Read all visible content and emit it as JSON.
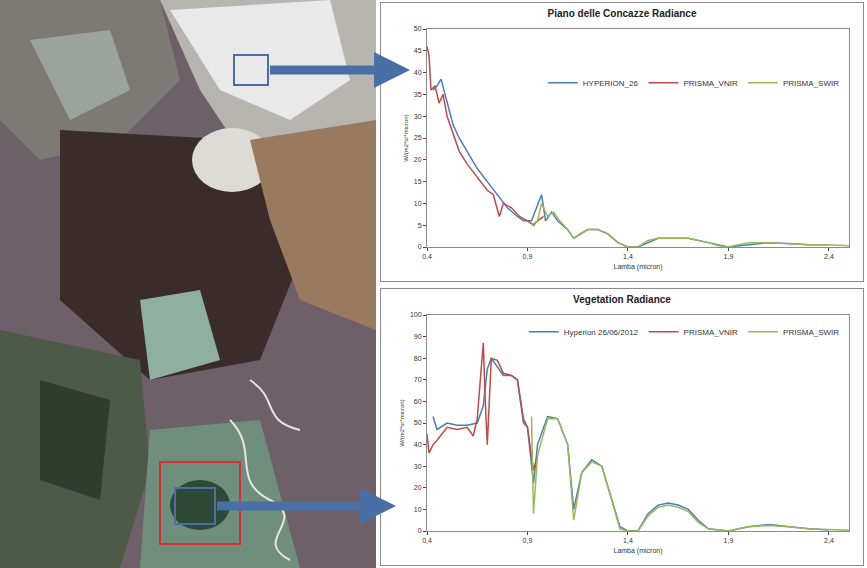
{
  "chart_data": [
    {
      "type": "line",
      "title": "Piano delle Concazze Radiance",
      "xlabel": "Lamba (micron)",
      "ylabel": "W/(m2*sr*micron)",
      "xlim": [
        0.4,
        2.5
      ],
      "xticks": [
        {
          "value": 0.4,
          "label": "0,4"
        },
        {
          "value": 0.9,
          "label": "0,9"
        },
        {
          "value": 1.4,
          "label": "1,4"
        },
        {
          "value": 1.9,
          "label": "1,9"
        },
        {
          "value": 2.4,
          "label": "2,4"
        }
      ],
      "ylim": [
        0,
        50
      ],
      "yticks": [
        0,
        5,
        10,
        15,
        20,
        25,
        30,
        35,
        40,
        45,
        50
      ],
      "grid": false,
      "legend": "upper right",
      "series": [
        {
          "name": "HYPERION_26",
          "color": "#4a7ebb",
          "x": [
            0.43,
            0.45,
            0.47,
            0.5,
            0.53,
            0.56,
            0.6,
            0.65,
            0.7,
            0.75,
            0.8,
            0.85,
            0.88,
            0.92,
            0.97,
            0.99,
            1.02,
            1.05,
            1.1,
            1.13,
            1.2,
            1.25,
            1.3,
            1.35,
            1.4,
            1.45,
            1.5,
            1.55,
            1.6,
            1.7,
            1.8,
            1.85,
            1.9,
            2.0,
            2.1,
            2.2,
            2.3,
            2.4
          ],
          "values": [
            36,
            37,
            38.5,
            33,
            28,
            25,
            22,
            18,
            15,
            12,
            9,
            7,
            6,
            6,
            12,
            6,
            8,
            6,
            4,
            2,
            4,
            4,
            3,
            1,
            0,
            0,
            1,
            2,
            2,
            2,
            1,
            0.5,
            0,
            0.5,
            1,
            0.8,
            0.5,
            0.5
          ]
        },
        {
          "name": "PRISMA_VNIR",
          "color": "#be4b48",
          "x": [
            0.4,
            0.41,
            0.42,
            0.44,
            0.46,
            0.48,
            0.5,
            0.53,
            0.56,
            0.6,
            0.65,
            0.68,
            0.7,
            0.73,
            0.76,
            0.78,
            0.82,
            0.86,
            0.9,
            0.93,
            0.95,
            0.98
          ],
          "values": [
            46,
            44,
            36,
            37,
            33,
            35,
            30,
            26,
            22,
            19,
            16,
            14,
            13,
            12,
            7,
            10,
            9,
            7,
            6,
            5,
            6,
            7
          ]
        },
        {
          "name": "PRISMA_SWIR",
          "color": "#98b954",
          "x": [
            0.92,
            0.95,
            0.97,
            1.0,
            1.03,
            1.06,
            1.1,
            1.13,
            1.16,
            1.2,
            1.25,
            1.3,
            1.35,
            1.4,
            1.45,
            1.5,
            1.55,
            1.6,
            1.7,
            1.75,
            1.8,
            1.85,
            1.9,
            1.95,
            2.0,
            2.1,
            2.2,
            2.3,
            2.4,
            2.5
          ],
          "values": [
            5,
            6,
            10,
            7,
            8,
            6,
            4,
            2,
            3,
            4,
            4,
            3,
            1,
            0,
            0,
            1.5,
            2,
            2,
            2,
            1.5,
            1,
            0.3,
            0,
            0.5,
            1,
            1,
            0.8,
            0.5,
            0.5,
            0.3
          ]
        }
      ]
    },
    {
      "type": "line",
      "title": "Vegetation Radiance",
      "xlabel": "Lamba (micron)",
      "ylabel": "W/(m2*sr*micron)",
      "xlim": [
        0.4,
        2.5
      ],
      "xticks": [
        {
          "value": 0.4,
          "label": "0,4"
        },
        {
          "value": 0.9,
          "label": "0,9"
        },
        {
          "value": 1.4,
          "label": "1,4"
        },
        {
          "value": 1.9,
          "label": "1,9"
        },
        {
          "value": 2.4,
          "label": "2,4"
        }
      ],
      "ylim": [
        0,
        100
      ],
      "yticks": [
        0,
        10,
        20,
        30,
        40,
        50,
        60,
        70,
        80,
        90,
        100
      ],
      "grid": false,
      "legend": "upper right",
      "series": [
        {
          "name": "Hyperion 26/06/2012",
          "color": "#4a7ebb",
          "x": [
            0.43,
            0.45,
            0.5,
            0.55,
            0.6,
            0.65,
            0.68,
            0.7,
            0.72,
            0.75,
            0.78,
            0.82,
            0.85,
            0.88,
            0.9,
            0.93,
            0.95,
            1.0,
            1.05,
            1.1,
            1.13,
            1.17,
            1.22,
            1.27,
            1.32,
            1.36,
            1.4,
            1.45,
            1.5,
            1.55,
            1.6,
            1.65,
            1.7,
            1.75,
            1.8,
            1.9,
            1.95,
            2.0,
            2.1,
            2.2,
            2.3,
            2.4
          ],
          "values": [
            53,
            47,
            50,
            49,
            49,
            50,
            58,
            75,
            80,
            76,
            72,
            72,
            70,
            52,
            48,
            22,
            40,
            53,
            52,
            40,
            10,
            27,
            33,
            30,
            15,
            2,
            0,
            0,
            8,
            12,
            13,
            12,
            10,
            5,
            1,
            0,
            1,
            2,
            3,
            2,
            1,
            0.5
          ]
        },
        {
          "name": "PRISMA_VNIR",
          "color": "#be4b48",
          "x": [
            0.4,
            0.41,
            0.43,
            0.45,
            0.5,
            0.55,
            0.6,
            0.63,
            0.65,
            0.68,
            0.69,
            0.7,
            0.72,
            0.75,
            0.78,
            0.82,
            0.85,
            0.88,
            0.9,
            0.93,
            0.95
          ],
          "values": [
            45,
            36,
            40,
            42,
            48,
            47,
            48,
            44,
            52,
            87,
            60,
            40,
            80,
            79,
            73,
            72,
            70,
            50,
            48,
            28,
            35
          ]
        },
        {
          "name": "PRISMA_SWIR",
          "color": "#98b954",
          "x": [
            0.92,
            0.93,
            0.95,
            1.0,
            1.05,
            1.1,
            1.13,
            1.17,
            1.22,
            1.27,
            1.32,
            1.36,
            1.4,
            1.45,
            1.5,
            1.55,
            1.6,
            1.65,
            1.7,
            1.75,
            1.8,
            1.9,
            1.95,
            2.0,
            2.1,
            2.2,
            2.3,
            2.4,
            2.5
          ],
          "values": [
            53,
            8,
            35,
            52,
            52,
            40,
            5,
            27,
            32,
            30,
            14,
            1,
            0,
            0,
            7,
            11,
            12,
            11,
            9,
            4,
            1,
            0,
            1,
            2,
            2.5,
            2,
            1,
            0.5,
            0.3
          ]
        }
      ]
    }
  ]
}
